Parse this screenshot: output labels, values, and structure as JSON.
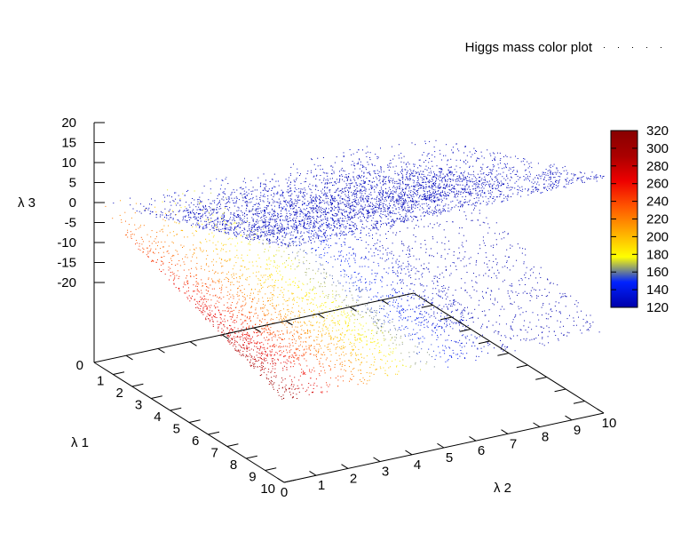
{
  "chart_data": {
    "type": "scatter",
    "title": "",
    "legend": {
      "entry": "Higgs mass color plot",
      "position": "top-right"
    },
    "x_axis": {
      "label": "λ 1",
      "range": [
        0,
        10
      ],
      "ticks": [
        "0",
        "1",
        "2",
        "3",
        "4",
        "5",
        "6",
        "7",
        "8",
        "9",
        "10"
      ]
    },
    "y_axis": {
      "label": "λ 2",
      "range": [
        0,
        10
      ],
      "ticks": [
        "0",
        "1",
        "2",
        "3",
        "4",
        "5",
        "6",
        "7",
        "8",
        "9",
        "10"
      ]
    },
    "z_axis": {
      "label": "λ 3",
      "range": [
        -20,
        20
      ],
      "ticks": [
        "20",
        "15",
        "10",
        "5",
        "0",
        "-5",
        "-10",
        "-15",
        "-20"
      ],
      "floor_tick": "0"
    },
    "colorbar": {
      "label": "",
      "range": [
        120,
        320
      ],
      "ticks": [
        "320",
        "300",
        "280",
        "260",
        "240",
        "220",
        "200",
        "180",
        "160",
        "140",
        "120"
      ],
      "palette": [
        "#0000aa",
        "#0022ff",
        "#ffff00",
        "#ffaa00",
        "#ff5500",
        "#ee0000",
        "#aa0000",
        "#880000"
      ]
    },
    "surfaces": [
      {
        "name": "upper",
        "z_at_max_l1": 20,
        "mass_trend": "low (≈120) everywhere"
      },
      {
        "name": "lower",
        "z_at_max_l1": -20,
        "mass_trend": "high (≈300) near λ2=0, decreasing to ≈120 as λ2 increases"
      }
    ],
    "grid": false
  }
}
